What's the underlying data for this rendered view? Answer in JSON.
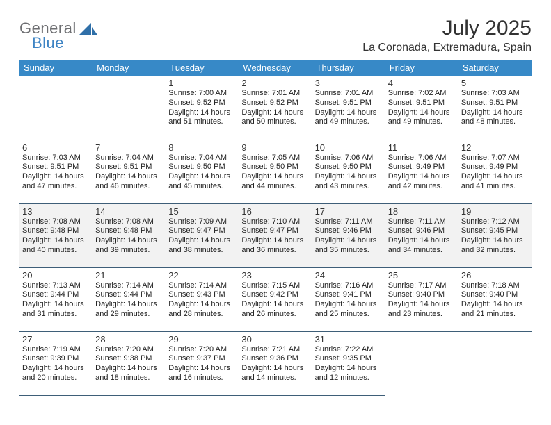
{
  "brand": {
    "word1": "General",
    "word2": "Blue"
  },
  "title": "July 2025",
  "location": "La Coronada, Extremadura, Spain",
  "colors": {
    "header_bg": "#3789c7",
    "header_text": "#ffffff",
    "cell_border": "#3e5e78",
    "shaded_bg": "#f2f2f2",
    "logo_gray": "#6d6e71",
    "logo_blue": "#3e84c4",
    "sail_blue": "#2f6fa8"
  },
  "weekdays": [
    "Sunday",
    "Monday",
    "Tuesday",
    "Wednesday",
    "Thursday",
    "Friday",
    "Saturday"
  ],
  "first_weekday_index": 2,
  "shaded_rows": [
    2
  ],
  "days": [
    {
      "n": 1,
      "sunrise": "7:00 AM",
      "sunset": "9:52 PM",
      "daylight": "14 hours and 51 minutes."
    },
    {
      "n": 2,
      "sunrise": "7:01 AM",
      "sunset": "9:52 PM",
      "daylight": "14 hours and 50 minutes."
    },
    {
      "n": 3,
      "sunrise": "7:01 AM",
      "sunset": "9:51 PM",
      "daylight": "14 hours and 49 minutes."
    },
    {
      "n": 4,
      "sunrise": "7:02 AM",
      "sunset": "9:51 PM",
      "daylight": "14 hours and 49 minutes."
    },
    {
      "n": 5,
      "sunrise": "7:03 AM",
      "sunset": "9:51 PM",
      "daylight": "14 hours and 48 minutes."
    },
    {
      "n": 6,
      "sunrise": "7:03 AM",
      "sunset": "9:51 PM",
      "daylight": "14 hours and 47 minutes."
    },
    {
      "n": 7,
      "sunrise": "7:04 AM",
      "sunset": "9:51 PM",
      "daylight": "14 hours and 46 minutes."
    },
    {
      "n": 8,
      "sunrise": "7:04 AM",
      "sunset": "9:50 PM",
      "daylight": "14 hours and 45 minutes."
    },
    {
      "n": 9,
      "sunrise": "7:05 AM",
      "sunset": "9:50 PM",
      "daylight": "14 hours and 44 minutes."
    },
    {
      "n": 10,
      "sunrise": "7:06 AM",
      "sunset": "9:50 PM",
      "daylight": "14 hours and 43 minutes."
    },
    {
      "n": 11,
      "sunrise": "7:06 AM",
      "sunset": "9:49 PM",
      "daylight": "14 hours and 42 minutes."
    },
    {
      "n": 12,
      "sunrise": "7:07 AM",
      "sunset": "9:49 PM",
      "daylight": "14 hours and 41 minutes."
    },
    {
      "n": 13,
      "sunrise": "7:08 AM",
      "sunset": "9:48 PM",
      "daylight": "14 hours and 40 minutes."
    },
    {
      "n": 14,
      "sunrise": "7:08 AM",
      "sunset": "9:48 PM",
      "daylight": "14 hours and 39 minutes."
    },
    {
      "n": 15,
      "sunrise": "7:09 AM",
      "sunset": "9:47 PM",
      "daylight": "14 hours and 38 minutes."
    },
    {
      "n": 16,
      "sunrise": "7:10 AM",
      "sunset": "9:47 PM",
      "daylight": "14 hours and 36 minutes."
    },
    {
      "n": 17,
      "sunrise": "7:11 AM",
      "sunset": "9:46 PM",
      "daylight": "14 hours and 35 minutes."
    },
    {
      "n": 18,
      "sunrise": "7:11 AM",
      "sunset": "9:46 PM",
      "daylight": "14 hours and 34 minutes."
    },
    {
      "n": 19,
      "sunrise": "7:12 AM",
      "sunset": "9:45 PM",
      "daylight": "14 hours and 32 minutes."
    },
    {
      "n": 20,
      "sunrise": "7:13 AM",
      "sunset": "9:44 PM",
      "daylight": "14 hours and 31 minutes."
    },
    {
      "n": 21,
      "sunrise": "7:14 AM",
      "sunset": "9:44 PM",
      "daylight": "14 hours and 29 minutes."
    },
    {
      "n": 22,
      "sunrise": "7:14 AM",
      "sunset": "9:43 PM",
      "daylight": "14 hours and 28 minutes."
    },
    {
      "n": 23,
      "sunrise": "7:15 AM",
      "sunset": "9:42 PM",
      "daylight": "14 hours and 26 minutes."
    },
    {
      "n": 24,
      "sunrise": "7:16 AM",
      "sunset": "9:41 PM",
      "daylight": "14 hours and 25 minutes."
    },
    {
      "n": 25,
      "sunrise": "7:17 AM",
      "sunset": "9:40 PM",
      "daylight": "14 hours and 23 minutes."
    },
    {
      "n": 26,
      "sunrise": "7:18 AM",
      "sunset": "9:40 PM",
      "daylight": "14 hours and 21 minutes."
    },
    {
      "n": 27,
      "sunrise": "7:19 AM",
      "sunset": "9:39 PM",
      "daylight": "14 hours and 20 minutes."
    },
    {
      "n": 28,
      "sunrise": "7:20 AM",
      "sunset": "9:38 PM",
      "daylight": "14 hours and 18 minutes."
    },
    {
      "n": 29,
      "sunrise": "7:20 AM",
      "sunset": "9:37 PM",
      "daylight": "14 hours and 16 minutes."
    },
    {
      "n": 30,
      "sunrise": "7:21 AM",
      "sunset": "9:36 PM",
      "daylight": "14 hours and 14 minutes."
    },
    {
      "n": 31,
      "sunrise": "7:22 AM",
      "sunset": "9:35 PM",
      "daylight": "14 hours and 12 minutes."
    }
  ],
  "labels": {
    "sunrise": "Sunrise:",
    "sunset": "Sunset:",
    "daylight": "Daylight:"
  }
}
